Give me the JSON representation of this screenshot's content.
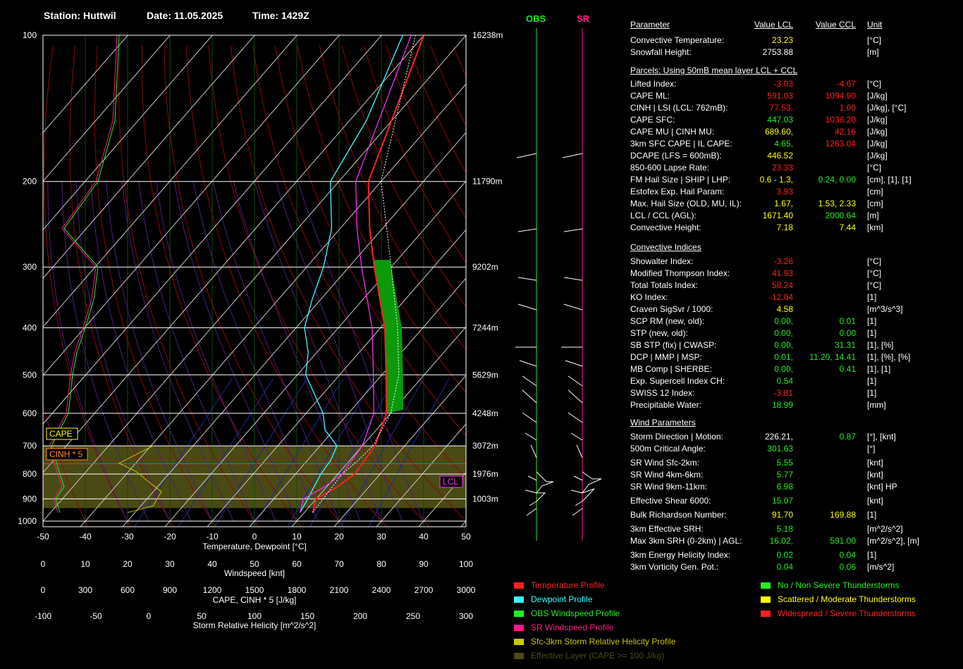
{
  "header": {
    "station": "Station: Huttwil",
    "date": "Date: 11.05.2025",
    "time": "Time: 1429Z"
  },
  "chart_data": {
    "type": "skew-t",
    "pressure_ticks": [
      100,
      200,
      300,
      400,
      500,
      600,
      700,
      800,
      900,
      1000
    ],
    "height_labels": [
      "16238m",
      "11790m",
      "9202m",
      "7244m",
      "5629m",
      "4248m",
      "3072m",
      "1976m",
      "1003m"
    ],
    "height_pressures": [
      100,
      200,
      300,
      400,
      500,
      600,
      700,
      800,
      900
    ],
    "temp_axis": {
      "label": "Temperature, Dewpoint [°C]",
      "ticks": [
        -50,
        -40,
        -30,
        -20,
        -10,
        0,
        10,
        20,
        30,
        40,
        50
      ]
    },
    "wind_axis": {
      "label": "Windspeed [knt]",
      "ticks": [
        0,
        10,
        20,
        30,
        40,
        50,
        60,
        70,
        80,
        90,
        100
      ]
    },
    "cape_axis": {
      "label": "CAPE, CINH * 5 [J/kg]",
      "ticks": [
        0,
        300,
        600,
        900,
        1200,
        1500,
        1800,
        2100,
        2400,
        2700,
        3000
      ]
    },
    "srh_axis": {
      "label": "Storm Relative Helicity [m^2/s^2]",
      "ticks": [
        -100,
        -50,
        0,
        50,
        100,
        150,
        200,
        250,
        300
      ]
    },
    "temperature_profile": [
      [
        960,
        12
      ],
      [
        900,
        10
      ],
      [
        850,
        12.5
      ],
      [
        800,
        14
      ],
      [
        750,
        13.5
      ],
      [
        700,
        13
      ],
      [
        600,
        9
      ],
      [
        500,
        1
      ],
      [
        400,
        -9
      ],
      [
        300,
        -24
      ],
      [
        250,
        -33
      ],
      [
        200,
        -43
      ],
      [
        100,
        -60
      ]
    ],
    "dewpoint_profile": [
      [
        960,
        9
      ],
      [
        900,
        8
      ],
      [
        800,
        6
      ],
      [
        750,
        5.5
      ],
      [
        700,
        4
      ],
      [
        650,
        -2
      ],
      [
        600,
        -6
      ],
      [
        500,
        -18
      ],
      [
        450,
        -22
      ],
      [
        400,
        -28
      ],
      [
        350,
        -32
      ],
      [
        300,
        -36
      ],
      [
        250,
        -42
      ],
      [
        200,
        -52
      ],
      [
        150,
        -56
      ],
      [
        100,
        -65
      ]
    ],
    "parcel_profile": [
      [
        960,
        12
      ],
      [
        800,
        11
      ],
      [
        750,
        12
      ],
      [
        700,
        12.5
      ],
      [
        600,
        10
      ],
      [
        500,
        4
      ],
      [
        400,
        -6
      ],
      [
        300,
        -20
      ],
      [
        200,
        -40
      ],
      [
        100,
        -62
      ]
    ],
    "lcl_pressure": 762,
    "lcl_label": "LCL",
    "effective_layer": [
      940,
      700
    ],
    "cape_label": "CAPE",
    "cinh_label": "CINH * 5"
  },
  "wind_columns": {
    "obs_label": "OBS",
    "sr_label": "SR"
  },
  "table": {
    "headers": {
      "param": "Parameter",
      "lcl": "Value LCL",
      "ccl": "Value CCL",
      "unit": "Unit"
    },
    "block1": [
      {
        "name": "Convective Temperature:",
        "lcl": "23.23",
        "ccl": "",
        "unit": "[°C]",
        "c1": "#ffff00",
        "c2": "#ffff00"
      },
      {
        "name": "Snowfall Height:",
        "lcl": "2753.88",
        "ccl": "",
        "unit": "[m]",
        "c1": "#ffffff",
        "c2": "#ffffff"
      }
    ],
    "parcels_title": "Parcels: Using 50mB mean layer LCL + CCL",
    "block2": [
      {
        "name": "Lifted Index:",
        "lcl": "-3.03",
        "ccl": "-4.67",
        "unit": "[°C]",
        "c1": "#ff2020",
        "c2": "#ff2020"
      },
      {
        "name": "CAPE ML:",
        "lcl": "591.03",
        "ccl": "1094.90",
        "unit": "[J/kg]",
        "c1": "#ff2020",
        "c2": "#ff2020"
      },
      {
        "name": "CINH | LSI (LCL: 762mB):",
        "lcl": "77.53,",
        "ccl": "1.00",
        "unit": "[J/kg], [°C]",
        "c1": "#ff2020",
        "c2": "#ff2020"
      },
      {
        "name": "CAPE SFC:",
        "lcl": "447.03",
        "ccl": "1036.20",
        "unit": "[J/kg]",
        "c1": "#22ee22",
        "c2": "#ff2020"
      },
      {
        "name": "CAPE MU | CINH MU:",
        "lcl": "689.60,",
        "ccl": "42.16",
        "unit": "[J/kg]",
        "c1": "#ffff00",
        "c2": "#ff2020"
      },
      {
        "name": "3km SFC CAPE | IL CAPE:",
        "lcl": "4.65,",
        "ccl": "1263.04",
        "unit": "[J/kg]",
        "c1": "#22ee22",
        "c2": "#ff2020"
      },
      {
        "name": "DCAPE (LFS = 600mB):",
        "lcl": "446.52",
        "ccl": "",
        "unit": "[J/kg]",
        "c1": "#ffff00",
        "c2": "#ffff00"
      },
      {
        "name": "850-600 Lapse Rate:",
        "lcl": "23.33",
        "ccl": "",
        "unit": "[°C]",
        "c1": "#ff2020",
        "c2": "#ff2020"
      },
      {
        "name": "FM Hail Size | SHIP | LHP:",
        "lcl": "0.6 - 1.3,",
        "ccl": "0.24,   0.00",
        "unit": "[cm], [1], [1]",
        "c1": "#ffff00",
        "c2": "#22ee22"
      },
      {
        "name": "Estofex Exp. Hail Param:",
        "lcl": "3.93",
        "ccl": "",
        "unit": "[cm]",
        "c1": "#ff2020",
        "c2": "#ff2020"
      },
      {
        "name": "Max. Hail Size (OLD, MU, IL):",
        "lcl": "1.67,",
        "ccl": "1.53,   2.33",
        "unit": "[cm]",
        "c1": "#ffff00",
        "c2": "#ffff00"
      },
      {
        "name": "LCL / CCL (AGL):",
        "lcl": "1671.40",
        "ccl": "2000.64",
        "unit": "[m]",
        "c1": "#ffff00",
        "c2": "#22ee22"
      },
      {
        "name": "Convective Height:",
        "lcl": "7.18",
        "ccl": "7.44",
        "unit": "[km]",
        "c1": "#ffff00",
        "c2": "#ffff00"
      }
    ],
    "conv_title": "Convective Indices",
    "block3": [
      {
        "name": "Showalter Index:",
        "lcl": "-3.26",
        "ccl": "",
        "unit": "[°C]",
        "c1": "#ff2020",
        "c2": "#ff2020"
      },
      {
        "name": "Modified Thompson Index:",
        "lcl": "41.93",
        "ccl": "",
        "unit": "[°C]",
        "c1": "#ff2020",
        "c2": "#ff2020"
      },
      {
        "name": "Total Totals Index:",
        "lcl": "58.24",
        "ccl": "",
        "unit": "[°C]",
        "c1": "#ff2020",
        "c2": "#ff2020"
      },
      {
        "name": "KO Index:",
        "lcl": "-12.04",
        "ccl": "",
        "unit": "[1]",
        "c1": "#ff2020",
        "c2": "#ff2020"
      },
      {
        "name": "Craven SigSvr / 1000:",
        "lcl": "4.58",
        "ccl": "",
        "unit": "[m^3/s^3]",
        "c1": "#ffff00",
        "c2": "#ffff00"
      },
      {
        "name": "SCP RM (new, old):",
        "lcl": "0.00,",
        "ccl": "0.01",
        "unit": "[1]",
        "c1": "#22ee22",
        "c2": "#22ee22"
      },
      {
        "name": "STP (new, old):",
        "lcl": "0.00,",
        "ccl": "0.00",
        "unit": "[1]",
        "c1": "#22ee22",
        "c2": "#22ee22"
      },
      {
        "name": "SB STP (fix) | CWASP:",
        "lcl": "0.00,",
        "ccl": "31.31",
        "unit": "[1], [%]",
        "c1": "#22ee22",
        "c2": "#22ee22"
      },
      {
        "name": "DCP | MMP | MSP:",
        "lcl": "0.01,",
        "ccl": "11.20,   14.41",
        "unit": "[1], [%], [%]",
        "c1": "#22ee22",
        "c2": "#22ee22"
      },
      {
        "name": "MB Comp | SHERBE:",
        "lcl": "0.00,",
        "ccl": "0.41",
        "unit": "[1], [1]",
        "c1": "#22ee22",
        "c2": "#22ee22"
      },
      {
        "name": "Exp. Supercell Index CH:",
        "lcl": "0.54",
        "ccl": "",
        "unit": "[1]",
        "c1": "#22ee22",
        "c2": "#22ee22"
      },
      {
        "name": "SWISS 12 Index:",
        "lcl": "-3.81",
        "ccl": "",
        "unit": "[1]",
        "c1": "#ff2020",
        "c2": "#ff2020"
      },
      {
        "name": "Precipitable Water:",
        "lcl": "18.99",
        "ccl": "",
        "unit": "[mm]",
        "c1": "#22ee22",
        "c2": "#22ee22"
      }
    ],
    "wind_title": "Wind Parameters",
    "block4": [
      {
        "name": "Storm Direction | Motion:",
        "lcl": "226.21,",
        "ccl": "0.87",
        "unit": "[°], [knt]",
        "c1": "#ffffff",
        "c2": "#22ee22"
      },
      {
        "name": "500m Critical Angle:",
        "lcl": "301.63",
        "ccl": "",
        "unit": "[°]",
        "c1": "#22ee22",
        "c2": "#22ee22"
      },
      {
        "name": "SR Wind Sfc-2km:",
        "lcl": "5.55",
        "ccl": "",
        "unit": "[knt]",
        "c1": "#22ee22",
        "c2": "#22ee22"
      },
      {
        "name": "SR Wind 4km-6km:",
        "lcl": "5.77",
        "ccl": "",
        "unit": "[knt]",
        "c1": "#22ee22",
        "c2": "#22ee22"
      },
      {
        "name": "SR Wind 9km-11km:",
        "lcl": "6.98",
        "ccl": "",
        "unit": "[knt] HP",
        "c1": "#22ee22",
        "c2": "#22ee22"
      },
      {
        "name": "Effective Shear 6000:",
        "lcl": "15.07",
        "ccl": "",
        "unit": "[knt]",
        "c1": "#22ee22",
        "c2": "#22ee22"
      },
      {
        "name": "Bulk Richardson Number:",
        "lcl": "91.70",
        "ccl": "169.88",
        "unit": "[1]",
        "c1": "#ffff00",
        "c2": "#ffff00"
      },
      {
        "name": "3km Effective SRH:",
        "lcl": "5.18",
        "ccl": "",
        "unit": "[m^2/s^2]",
        "c1": "#22ee22",
        "c2": "#22ee22"
      },
      {
        "name": "Max 3km SRH (0-2km) | AGL:",
        "lcl": "16.02,",
        "ccl": "591.00",
        "unit": "[m^2/s^2], [m]",
        "c1": "#22ee22",
        "c2": "#22ee22"
      },
      {
        "name": "3km Energy Helicity Index:",
        "lcl": "0.02",
        "ccl": "0.04",
        "unit": "[1]",
        "c1": "#22ee22",
        "c2": "#22ee22"
      },
      {
        "name": "3km Vorticity Gen. Pot.:",
        "lcl": "0.04",
        "ccl": "0.06",
        "unit": "[m/s^2]",
        "c1": "#22ee22",
        "c2": "#22ee22"
      }
    ]
  },
  "legend": {
    "left": [
      {
        "label": "Temperature Profile",
        "color": "#ff2020"
      },
      {
        "label": "Dewpoint Profile",
        "color": "#33ffff"
      },
      {
        "label": "OBS Windspeed Profile",
        "color": "#22ee22"
      },
      {
        "label": "SR Windspeed Profile",
        "color": "#ff1a8c"
      },
      {
        "label": "Sfc-3km Storm Relative Helicity Profile",
        "color": "#c8c800"
      },
      {
        "label": "Effective Layer (CAPE >= 100 J/kg)",
        "color": "#4a4a14"
      }
    ],
    "right": [
      {
        "label": "No / Non Severe Thunderstorms",
        "color": "#22ee22"
      },
      {
        "label": "Scattered / Moderate Thunderstorms",
        "color": "#ffff00"
      },
      {
        "label": "Widespread / Severe Thunderstorms",
        "color": "#ff2020"
      }
    ]
  }
}
